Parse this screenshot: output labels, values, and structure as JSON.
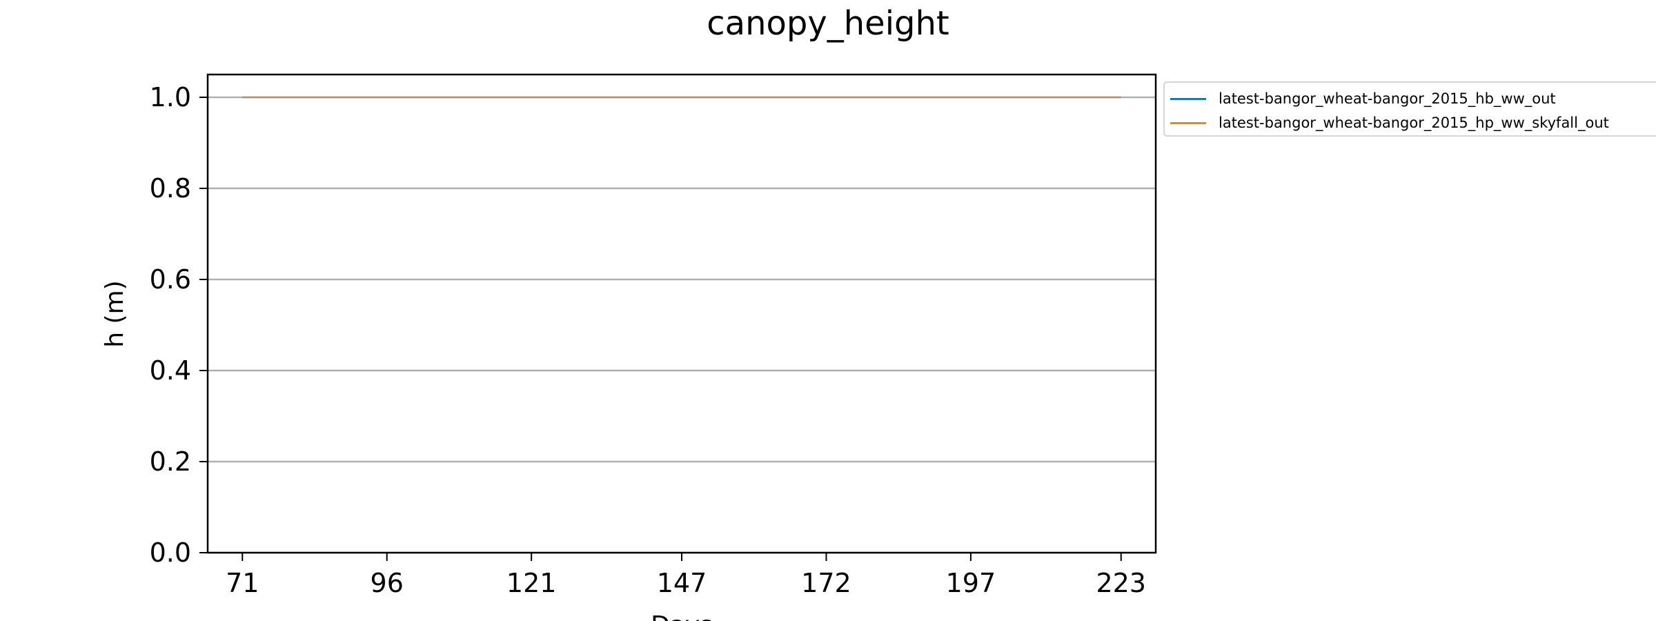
{
  "chart_data": {
    "type": "line",
    "title": "canopy_height",
    "xlabel": "Days",
    "ylabel": "h (m)",
    "xlim": [
      65,
      229
    ],
    "ylim": [
      0.0,
      1.05
    ],
    "xticks": [
      71,
      96,
      121,
      147,
      172,
      197,
      223
    ],
    "yticks": [
      0.0,
      0.2,
      0.4,
      0.6,
      0.8,
      1.0
    ],
    "ytick_labels": [
      "0.0",
      "0.2",
      "0.4",
      "0.6",
      "0.8",
      "1.0"
    ],
    "grid": "horizontal",
    "legend_position": "outside-top-right",
    "series": [
      {
        "name": "latest-bangor_wheat-bangor_2015_hb_ww_out",
        "color": "#1f77b4",
        "x": [
          71,
          223
        ],
        "y": [
          1.0,
          1.0
        ]
      },
      {
        "name": "latest-bangor_wheat-bangor_2015_hp_ww_skyfall_out",
        "color": "#ff7f0e",
        "x": [
          71,
          223
        ],
        "y": [
          1.0,
          1.0
        ]
      }
    ]
  }
}
